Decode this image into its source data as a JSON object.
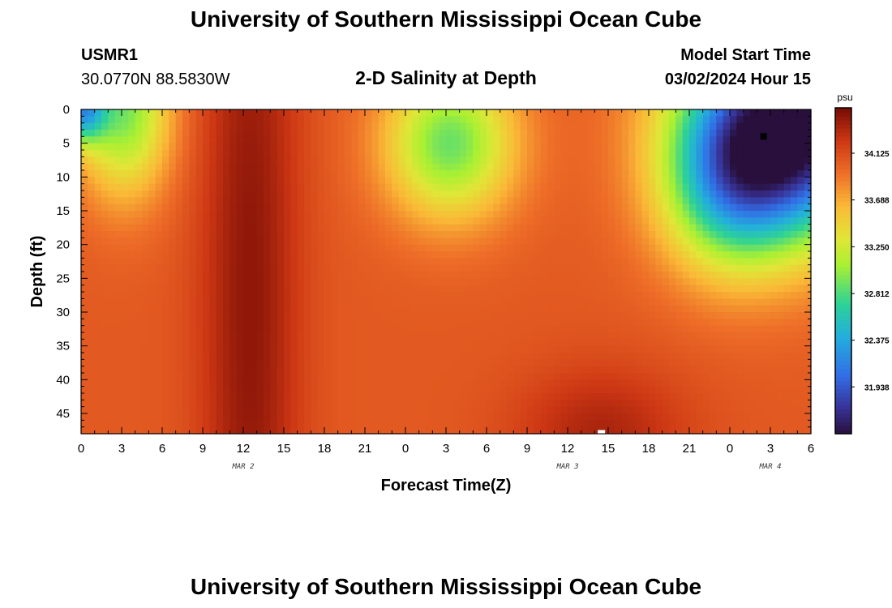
{
  "header": {
    "title": "University of Southern Mississippi Ocean Cube",
    "station_id": "USMR1",
    "station_coords": "30.0770N  88.5830W",
    "model_start_label": "Model Start Time",
    "model_start_value": "03/02/2024 Hour 15",
    "plot_title": "2-D Salinity at Depth"
  },
  "footer": {
    "title": "University of Southern Mississippi Ocean Cube"
  },
  "chart_data": {
    "type": "heatmap",
    "title": "2-D Salinity at Depth",
    "xlabel": "Forecast Time(Z)",
    "ylabel": "Depth (ft)",
    "x_ticks": [
      "0",
      "3",
      "6",
      "9",
      "12",
      "15",
      "18",
      "21",
      "0",
      "3",
      "6",
      "9",
      "12",
      "15",
      "18",
      "21",
      "0",
      "3",
      "6"
    ],
    "x_hours": [
      0,
      3,
      6,
      9,
      12,
      15,
      18,
      21,
      24,
      27,
      30,
      33,
      36,
      39,
      42,
      45,
      48,
      51,
      54
    ],
    "x_range_hours": [
      0,
      54
    ],
    "date_labels": [
      {
        "text": "MAR 2",
        "hour": 12
      },
      {
        "text": "MAR 3",
        "hour": 36
      },
      {
        "text": "MAR 4",
        "hour": 51
      }
    ],
    "y_ticks": [
      "0",
      "5",
      "10",
      "15",
      "20",
      "25",
      "30",
      "35",
      "40",
      "45"
    ],
    "y_values": [
      0,
      5,
      10,
      15,
      20,
      25,
      30,
      35,
      40,
      45
    ],
    "y_range": [
      0,
      48
    ],
    "colorbar": {
      "unit": "psu",
      "ticks": [
        "34.125",
        "33.688",
        "33.250",
        "32.812",
        "32.375",
        "31.938"
      ],
      "tick_values": [
        34.125,
        33.688,
        33.25,
        32.812,
        32.375,
        31.938
      ],
      "range": [
        31.5,
        34.55
      ]
    },
    "field": {
      "background": 34.05,
      "features": [
        {
          "hour": 12.5,
          "depth": 28,
          "sigma_hour": 2.6,
          "sigma_depth": 55,
          "delta": 0.42
        },
        {
          "hour": 38.5,
          "depth": 48,
          "sigma_hour": 4.5,
          "sigma_depth": 7,
          "delta": 0.32
        },
        {
          "hour": 3.2,
          "depth": 0,
          "sigma_hour": 2.4,
          "sigma_depth": 9,
          "delta": -1.1
        },
        {
          "hour": 0,
          "depth": 0,
          "sigma_hour": 1.2,
          "sigma_depth": 3.5,
          "delta": -1.4
        },
        {
          "hour": 27.3,
          "depth": 5,
          "sigma_hour": 3.4,
          "sigma_depth": 8,
          "delta": -1.15
        },
        {
          "hour": 52.5,
          "depth": 3,
          "sigma_hour": 5.5,
          "sigma_depth": 11,
          "delta": -2.6
        },
        {
          "hour": 48,
          "depth": 12,
          "sigma_hour": 3.5,
          "sigma_depth": 9,
          "delta": -0.9
        }
      ]
    },
    "markers": [
      {
        "hour": 50.5,
        "depth": 4,
        "color": "#000000"
      },
      {
        "hour": 38.5,
        "depth": 48,
        "color": "#ffffff"
      }
    ]
  }
}
